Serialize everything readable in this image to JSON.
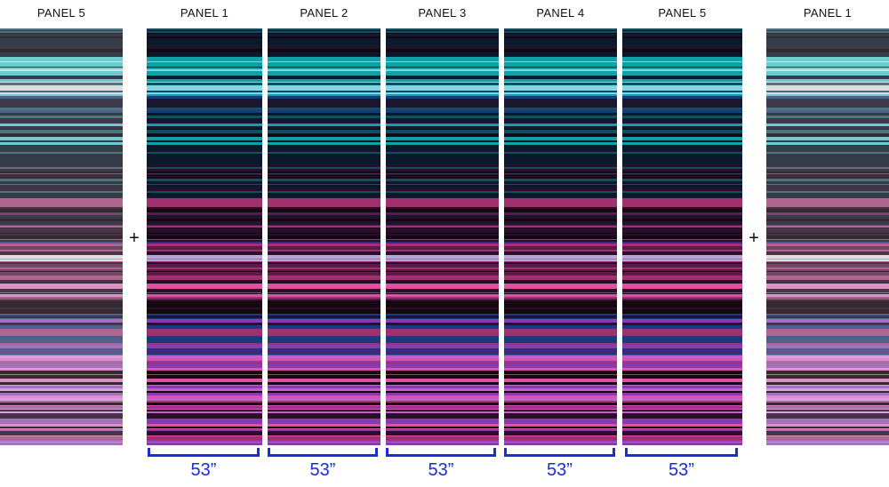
{
  "panels": [
    {
      "label": "PANEL 5",
      "role": "preview-left",
      "faded": true
    },
    {
      "label": "PANEL 1",
      "width_label": "53”"
    },
    {
      "label": "PANEL 2",
      "width_label": "53”"
    },
    {
      "label": "PANEL 3",
      "width_label": "53”"
    },
    {
      "label": "PANEL 4",
      "width_label": "53”"
    },
    {
      "label": "PANEL 5",
      "width_label": "53”"
    },
    {
      "label": "PANEL 1",
      "role": "preview-right",
      "faded": true
    }
  ],
  "joiners": [
    "+",
    "+"
  ],
  "colors": {
    "bracket": "#1d2bd8",
    "stripe_palette": [
      "#0a1a2a",
      "#0f5060",
      "#12a0a8",
      "#7fd8e0",
      "#1a1630",
      "#2a0f2a",
      "#5a1a4a",
      "#a0306e",
      "#e050a0",
      "#b8a8d8",
      "#3a2a80",
      "#1a3a80",
      "#8a3ab0",
      "#c060c8",
      "#160810"
    ]
  }
}
